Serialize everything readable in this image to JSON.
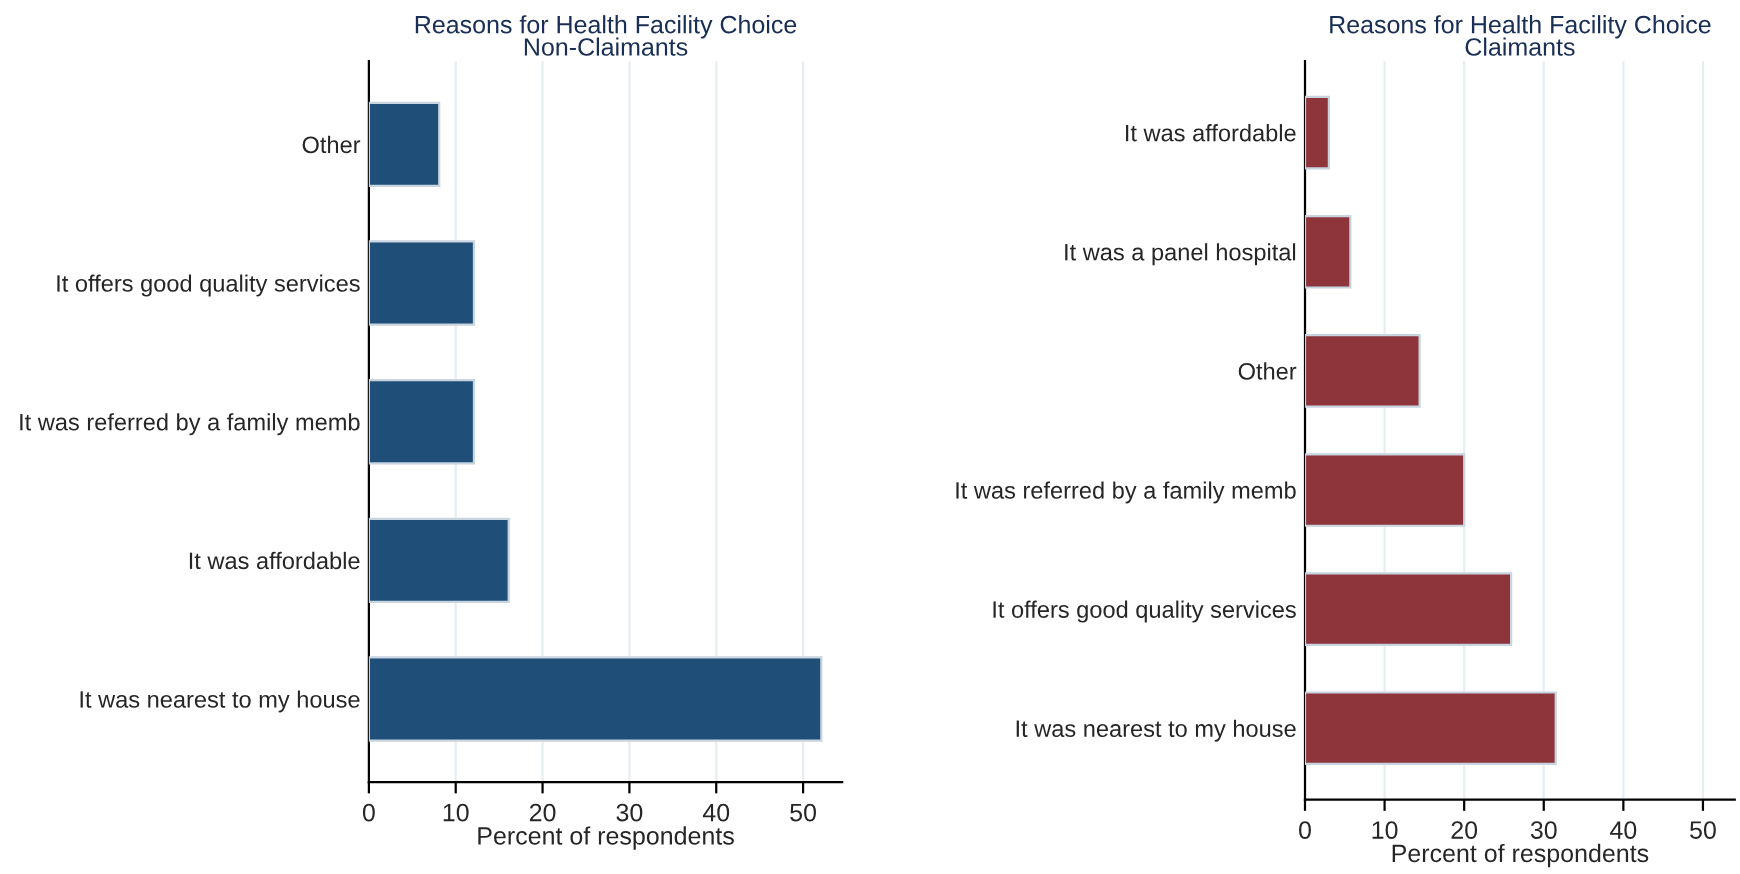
{
  "chart_data": [
    {
      "type": "bar",
      "orientation": "horizontal",
      "title": "Reasons for Health Facility Choice\nNon-Claimants",
      "xlabel": "Percent of respondents",
      "categories": [
        "Other",
        "It offers good quality services",
        "It was referred by a family memb",
        "It was affordable",
        "It was nearest to my house"
      ],
      "values": [
        8.1,
        12.1,
        12.1,
        16.1,
        52.1
      ],
      "color": "#1f4e79",
      "xlim": [
        0,
        54.5
      ],
      "xticks": [
        0,
        10,
        20,
        30,
        40,
        50
      ],
      "grid": "x"
    },
    {
      "type": "bar",
      "orientation": "horizontal",
      "title": "Reasons for Health Facility Choice\nClaimants",
      "xlabel": "Percent of respondents",
      "categories": [
        "It was affordable",
        "It was a panel hospital",
        "Other",
        "It was referred by a family memb",
        "It offers good quality services",
        "It was nearest to my house"
      ],
      "values": [
        3,
        5.7,
        14.4,
        20,
        25.9,
        31.5
      ],
      "color": "#8e353c",
      "xlim": [
        0,
        54
      ],
      "xticks": [
        0,
        10,
        20,
        30,
        40,
        50
      ],
      "grid": "x"
    }
  ]
}
